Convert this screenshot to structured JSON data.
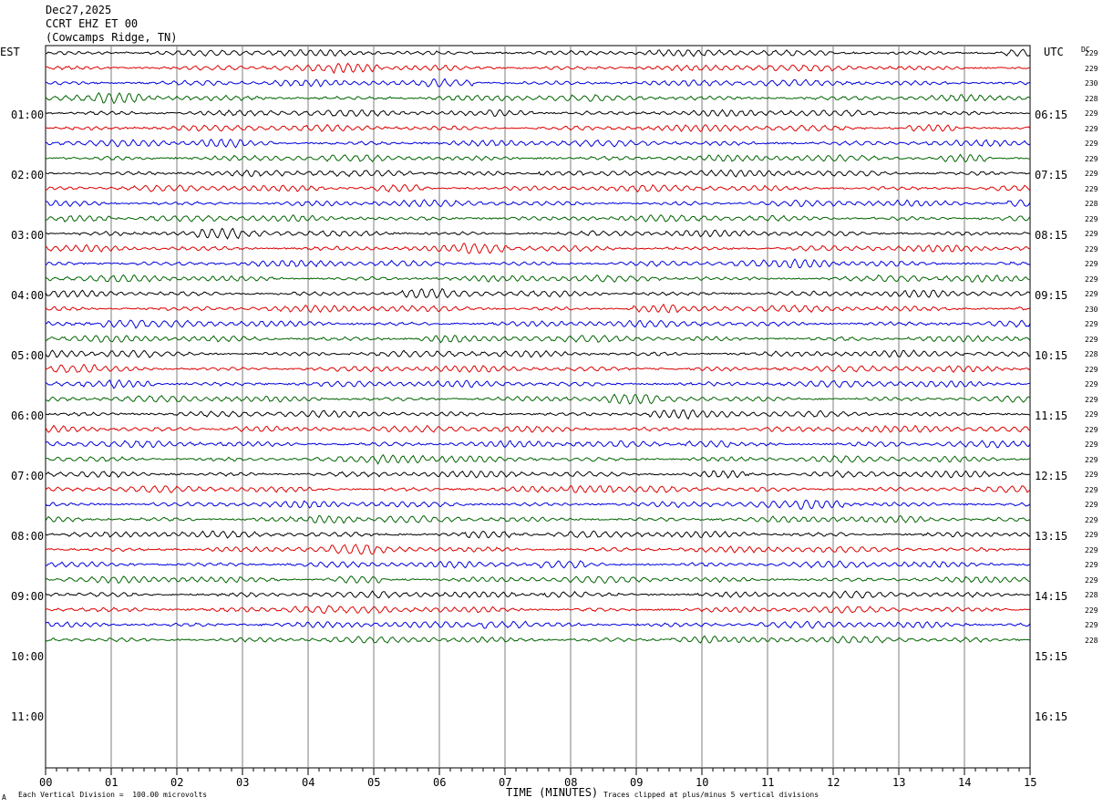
{
  "header": {
    "date": "Dec27,2025",
    "station": "CCRT EHZ ET 00",
    "location": "(Cowcamps Ridge, TN)"
  },
  "left_zone": "EST",
  "right_zone": "UTC",
  "dc_label": "DC",
  "footer": {
    "scale_note": "Each Vertical Division =  100.00 microvolts",
    "xlabel": "TIME (MINUTES)",
    "clip_note": "Traces clipped at plus/minus 5 vertical divisions",
    "corner_mark": "A"
  },
  "chart_data": {
    "type": "line",
    "title": "",
    "xlabel": "TIME (MINUTES)",
    "xlim": [
      0,
      15
    ],
    "x_ticks": [
      "00",
      "01",
      "02",
      "03",
      "04",
      "05",
      "06",
      "07",
      "08",
      "09",
      "10",
      "11",
      "12",
      "13",
      "14",
      "15"
    ],
    "left_hour_labels": [
      "01:00",
      "02:00",
      "03:00",
      "04:00",
      "05:00",
      "06:00",
      "07:00",
      "08:00",
      "09:00",
      "10:00",
      "11:00"
    ],
    "right_hour_labels": [
      "06:15",
      "07:15",
      "08:15",
      "09:15",
      "10:15",
      "11:15",
      "12:15",
      "13:15",
      "14:15",
      "15:15",
      "16:15"
    ],
    "trace_colors": [
      "#000000",
      "#dd0000",
      "#0000dd",
      "#006400"
    ],
    "trace_dc_values": [
      "229",
      "229",
      "230",
      "228",
      "229",
      "229",
      "229",
      "229",
      "229",
      "229",
      "228",
      "229",
      "229",
      "229",
      "229",
      "229",
      "229",
      "230",
      "229",
      "229",
      "228",
      "229",
      "229",
      "229",
      "229",
      "229",
      "229",
      "229",
      "229",
      "229",
      "229",
      "229",
      "229",
      "229",
      "229",
      "229",
      "228",
      "229",
      "229",
      "228"
    ],
    "grid": true
  }
}
